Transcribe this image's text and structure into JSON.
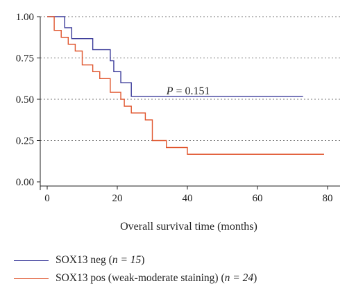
{
  "chart_data": {
    "type": "line",
    "subtype": "kaplan-meier",
    "xlabel": "Overall survival time (months)",
    "ylabel": "",
    "xlim": [
      0,
      80
    ],
    "ylim": [
      0,
      1
    ],
    "x_ticks": [
      "0",
      "20",
      "40",
      "60",
      "80"
    ],
    "y_ticks": [
      "0.00",
      "0.25",
      "0.50",
      "0.75",
      "1.00"
    ],
    "grid": "dotted horizontal at 0.25, 0.50, 0.75, 1.00",
    "annotation": {
      "prefix": "P",
      "text": " = 0.151",
      "x": 34,
      "y": 0.55
    },
    "series": [
      {
        "name": "SOX13 neg",
        "n_text": "n = 15",
        "color": "#3b3b9a",
        "steps": [
          [
            0,
            1.0
          ],
          [
            5,
            0.933
          ],
          [
            7,
            0.867
          ],
          [
            13,
            0.8
          ],
          [
            18,
            0.733
          ],
          [
            19,
            0.667
          ],
          [
            21,
            0.6
          ],
          [
            24,
            0.517
          ],
          [
            73,
            0.517
          ]
        ]
      },
      {
        "name": "SOX13 pos (weak-moderate staining)",
        "n_text": "n = 24",
        "color": "#e0562e",
        "steps": [
          [
            0,
            1.0
          ],
          [
            2,
            0.917
          ],
          [
            4,
            0.875
          ],
          [
            6,
            0.833
          ],
          [
            8,
            0.792
          ],
          [
            10,
            0.708
          ],
          [
            13,
            0.667
          ],
          [
            15,
            0.625
          ],
          [
            18,
            0.542
          ],
          [
            21,
            0.5
          ],
          [
            22,
            0.458
          ],
          [
            24,
            0.417
          ],
          [
            28,
            0.375
          ],
          [
            30,
            0.25
          ],
          [
            34,
            0.208
          ],
          [
            40,
            0.167
          ],
          [
            79,
            0.167
          ]
        ]
      }
    ]
  },
  "legend": {
    "items": [
      {
        "label": "SOX13 neg",
        "n_text": "n = 15",
        "color": "#3b3b9a"
      },
      {
        "label": "SOX13 pos (weak-moderate staining)",
        "n_text": "n = 24",
        "color": "#e0562e"
      }
    ]
  }
}
